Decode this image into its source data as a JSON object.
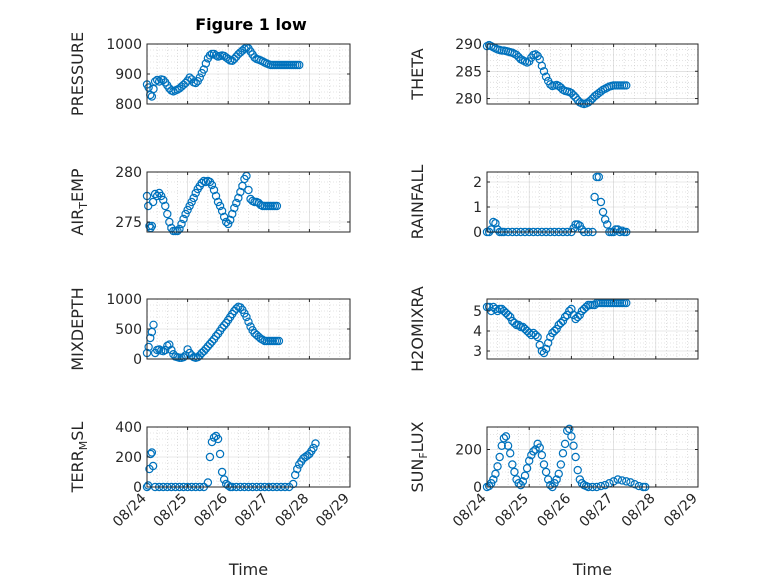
{
  "title": "Figure 1 low",
  "colors": {
    "marker": "#0072BD",
    "axis": "#262626",
    "grid": "#bdbdbd"
  },
  "chart_data": [
    {
      "type": "scatter",
      "ylabel": "PRESSURE",
      "ylim": [
        800,
        1000
      ],
      "yticks": [
        "800",
        "900",
        "1000"
      ],
      "xticks": [],
      "xlabel": "",
      "grid": true,
      "x": [
        0,
        0.04,
        0.08,
        0.12,
        0.16,
        0.2,
        0.25,
        0.3,
        0.35,
        0.4,
        0.45,
        0.5,
        0.55,
        0.6,
        0.65,
        0.7,
        0.75,
        0.8,
        0.85,
        0.9,
        0.95,
        1.0,
        1.05,
        1.1,
        1.15,
        1.2,
        1.25,
        1.3,
        1.35,
        1.4,
        1.45,
        1.5,
        1.55,
        1.6,
        1.65,
        1.7,
        1.75,
        1.8,
        1.85,
        1.9,
        1.95,
        2.0,
        2.05,
        2.1,
        2.15,
        2.2,
        2.25,
        2.3,
        2.35,
        2.4,
        2.45,
        2.5,
        2.55,
        2.6,
        2.65,
        2.7,
        2.75,
        2.8,
        2.85,
        2.9,
        2.95,
        3.0,
        3.05,
        3.1,
        3.15,
        3.2,
        3.25,
        3.3,
        3.35,
        3.4,
        3.45,
        3.5,
        3.55,
        3.6,
        3.65,
        3.7,
        3.75
      ],
      "y": [
        865,
        855,
        830,
        825,
        850,
        875,
        880,
        875,
        882,
        880,
        872,
        862,
        852,
        845,
        842,
        845,
        848,
        852,
        858,
        864,
        870,
        878,
        888,
        882,
        872,
        870,
        876,
        888,
        903,
        915,
        935,
        952,
        962,
        967,
        967,
        962,
        958,
        960,
        962,
        960,
        955,
        950,
        945,
        944,
        950,
        958,
        966,
        972,
        978,
        984,
        988,
        985,
        975,
        965,
        955,
        950,
        948,
        945,
        942,
        938,
        935,
        932,
        930,
        930,
        930,
        930,
        930,
        930,
        930,
        930,
        930,
        930,
        930,
        930,
        930,
        930,
        930
      ]
    },
    {
      "type": "scatter",
      "ylabel": "THETA",
      "ylim": [
        279,
        290
      ],
      "yticks": [
        "280",
        "285",
        "290"
      ],
      "xticks": [],
      "xlabel": "",
      "grid": true,
      "x": [
        0,
        0.05,
        0.1,
        0.15,
        0.2,
        0.25,
        0.3,
        0.35,
        0.4,
        0.45,
        0.5,
        0.55,
        0.6,
        0.65,
        0.7,
        0.75,
        0.8,
        0.85,
        0.9,
        0.95,
        1.0,
        1.05,
        1.1,
        1.15,
        1.2,
        1.25,
        1.3,
        1.35,
        1.4,
        1.45,
        1.5,
        1.55,
        1.6,
        1.65,
        1.7,
        1.75,
        1.8,
        1.85,
        1.9,
        1.95,
        2.0,
        2.05,
        2.1,
        2.15,
        2.2,
        2.25,
        2.3,
        2.35,
        2.4,
        2.45,
        2.5,
        2.55,
        2.6,
        2.65,
        2.7,
        2.75,
        2.8,
        2.85,
        2.9,
        2.95,
        3.0,
        3.05,
        3.1,
        3.15,
        3.2,
        3.25,
        3.3
      ],
      "y": [
        289.6,
        289.8,
        289.6,
        289.4,
        289.2,
        289.0,
        288.9,
        288.8,
        288.8,
        288.7,
        288.6,
        288.5,
        288.4,
        288.2,
        288.0,
        287.6,
        287.2,
        287.0,
        286.8,
        286.6,
        286.8,
        287.5,
        288.0,
        288.1,
        287.8,
        287.2,
        286.0,
        285.0,
        284.0,
        283.2,
        282.6,
        282.3,
        282.4,
        282.5,
        282.3,
        282.0,
        281.6,
        281.4,
        281.3,
        281.2,
        281.0,
        280.6,
        280.2,
        279.7,
        279.3,
        279.1,
        279.0,
        279.1,
        279.3,
        279.6,
        280.0,
        280.4,
        280.7,
        281.0,
        281.3,
        281.6,
        281.8,
        282.0,
        282.2,
        282.3,
        282.4,
        282.4,
        282.4,
        282.4,
        282.4,
        282.4,
        282.4
      ]
    },
    {
      "type": "scatter",
      "ylabel": "AIR_TEMP",
      "ylim": [
        274,
        280
      ],
      "yticks": [
        "275",
        "280"
      ],
      "xticks": [],
      "xlabel": "",
      "grid": true,
      "x": [
        0,
        0.03,
        0.06,
        0.09,
        0.12,
        0.15,
        0.2,
        0.25,
        0.3,
        0.35,
        0.4,
        0.45,
        0.5,
        0.55,
        0.6,
        0.65,
        0.7,
        0.75,
        0.8,
        0.85,
        0.9,
        0.95,
        1.0,
        1.05,
        1.1,
        1.15,
        1.2,
        1.25,
        1.3,
        1.35,
        1.4,
        1.45,
        1.5,
        1.55,
        1.6,
        1.65,
        1.7,
        1.75,
        1.8,
        1.85,
        1.9,
        1.95,
        2.0,
        2.05,
        2.1,
        2.15,
        2.2,
        2.25,
        2.3,
        2.35,
        2.4,
        2.45,
        2.5,
        2.55,
        2.6,
        2.65,
        2.7,
        2.75,
        2.8,
        2.85,
        2.9,
        2.95,
        3.0,
        3.05,
        3.1,
        3.15,
        3.2
      ],
      "y": [
        277.6,
        276.6,
        274.6,
        274.4,
        274.6,
        277.0,
        277.8,
        277.6,
        277.9,
        277.6,
        277.2,
        276.6,
        275.8,
        275.0,
        274.4,
        274.1,
        274.1,
        274.1,
        274.3,
        274.8,
        275.3,
        275.8,
        276.2,
        276.6,
        277.0,
        277.4,
        277.9,
        278.3,
        278.6,
        278.9,
        279.1,
        279.0,
        279.1,
        279.0,
        278.7,
        278.2,
        277.6,
        277.0,
        276.6,
        276.1,
        275.5,
        275.0,
        274.8,
        275.2,
        275.8,
        276.4,
        276.9,
        277.4,
        278.0,
        278.6,
        279.3,
        279.6,
        278.2,
        277.3,
        277.1,
        277.0,
        277.0,
        276.9,
        276.7,
        276.6,
        276.6,
        276.6,
        276.6,
        276.6,
        276.6,
        276.6,
        276.6
      ]
    },
    {
      "type": "scatter",
      "ylabel": "RAINFALL",
      "ylim": [
        0,
        2.4
      ],
      "yticks": [
        "0",
        "1",
        "2"
      ],
      "xticks": [],
      "xlabel": "",
      "grid": true,
      "x": [
        0,
        0.05,
        0.1,
        0.15,
        0.2,
        0.25,
        0.3,
        0.35,
        0.4,
        0.5,
        0.6,
        0.7,
        0.8,
        0.9,
        1.0,
        1.1,
        1.2,
        1.3,
        1.4,
        1.5,
        1.6,
        1.7,
        1.8,
        1.9,
        2.0,
        2.05,
        2.1,
        2.15,
        2.2,
        2.25,
        2.3,
        2.4,
        2.5,
        2.55,
        2.6,
        2.65,
        2.7,
        2.75,
        2.8,
        2.85,
        2.9,
        2.95,
        3.0,
        3.05,
        3.1,
        3.15,
        3.2,
        3.25,
        3.3
      ],
      "y": [
        0,
        0,
        0.1,
        0.4,
        0.35,
        0.1,
        0,
        0,
        0,
        0,
        0,
        0,
        0,
        0,
        0,
        0,
        0,
        0,
        0,
        0,
        0,
        0,
        0,
        0,
        0,
        0.15,
        0.3,
        0.3,
        0.25,
        0.1,
        0,
        0,
        0,
        1.4,
        2.2,
        2.2,
        1.2,
        0.8,
        0.5,
        0.3,
        0,
        0,
        0,
        0.1,
        0.1,
        0,
        0.05,
        0,
        0
      ]
    },
    {
      "type": "scatter",
      "ylabel": "MIXDEPTH",
      "ylim": [
        0,
        1000
      ],
      "yticks": [
        "0",
        "500",
        "1000"
      ],
      "xticks": [],
      "xlabel": "",
      "grid": true,
      "x": [
        0,
        0.04,
        0.08,
        0.12,
        0.16,
        0.2,
        0.25,
        0.3,
        0.35,
        0.4,
        0.45,
        0.5,
        0.55,
        0.6,
        0.65,
        0.7,
        0.75,
        0.8,
        0.85,
        0.9,
        0.95,
        1.0,
        1.05,
        1.1,
        1.15,
        1.2,
        1.25,
        1.3,
        1.35,
        1.4,
        1.45,
        1.5,
        1.55,
        1.6,
        1.65,
        1.7,
        1.75,
        1.8,
        1.85,
        1.9,
        1.95,
        2.0,
        2.05,
        2.1,
        2.15,
        2.2,
        2.25,
        2.3,
        2.35,
        2.4,
        2.45,
        2.5,
        2.55,
        2.6,
        2.65,
        2.7,
        2.75,
        2.8,
        2.85,
        2.9,
        2.95,
        3.0,
        3.05,
        3.1,
        3.15,
        3.2,
        3.25
      ],
      "y": [
        100,
        200,
        350,
        450,
        570,
        100,
        150,
        160,
        140,
        130,
        150,
        220,
        240,
        150,
        80,
        40,
        30,
        20,
        20,
        30,
        60,
        160,
        100,
        60,
        30,
        20,
        30,
        60,
        100,
        130,
        170,
        210,
        250,
        290,
        330,
        380,
        420,
        470,
        520,
        560,
        600,
        650,
        700,
        750,
        800,
        840,
        870,
        860,
        820,
        760,
        700,
        620,
        540,
        480,
        430,
        400,
        370,
        340,
        320,
        300,
        300,
        300,
        300,
        300,
        300,
        300,
        300
      ]
    },
    {
      "type": "scatter",
      "ylabel": "H2OMIXRA",
      "ylim": [
        2.6,
        5.6
      ],
      "yticks": [
        "3",
        "4",
        "5"
      ],
      "xticks": [],
      "xlabel": "",
      "grid": true,
      "x": [
        0,
        0.05,
        0.1,
        0.15,
        0.2,
        0.25,
        0.3,
        0.35,
        0.4,
        0.45,
        0.5,
        0.55,
        0.6,
        0.65,
        0.7,
        0.75,
        0.8,
        0.85,
        0.9,
        0.95,
        1.0,
        1.05,
        1.1,
        1.15,
        1.2,
        1.25,
        1.3,
        1.35,
        1.4,
        1.45,
        1.5,
        1.55,
        1.6,
        1.65,
        1.7,
        1.75,
        1.8,
        1.85,
        1.9,
        1.95,
        2.0,
        2.05,
        2.1,
        2.15,
        2.2,
        2.25,
        2.3,
        2.35,
        2.4,
        2.45,
        2.5,
        2.55,
        2.6,
        2.65,
        2.7,
        2.75,
        2.8,
        2.85,
        2.9,
        2.95,
        3.0,
        3.05,
        3.1,
        3.15,
        3.2,
        3.25,
        3.3
      ],
      "y": [
        5.2,
        5.2,
        5.0,
        5.2,
        5.1,
        5.0,
        5.1,
        5.1,
        5.0,
        4.9,
        4.8,
        4.7,
        4.5,
        4.4,
        4.3,
        4.3,
        4.2,
        4.2,
        4.1,
        4.0,
        3.9,
        3.8,
        3.9,
        3.8,
        3.7,
        3.3,
        3.0,
        2.9,
        3.1,
        3.4,
        3.7,
        3.9,
        4.0,
        4.1,
        4.3,
        4.4,
        4.5,
        4.7,
        4.8,
        5.0,
        5.1,
        4.8,
        4.6,
        4.7,
        4.8,
        5.0,
        5.1,
        5.2,
        5.3,
        5.3,
        5.3,
        5.3,
        5.4,
        5.4,
        5.4,
        5.4,
        5.4,
        5.4,
        5.4,
        5.4,
        5.4,
        5.4,
        5.4,
        5.4,
        5.4,
        5.4,
        5.4
      ]
    },
    {
      "type": "scatter",
      "ylabel": "TERR_MSL",
      "ylim": [
        0,
        400
      ],
      "yticks": [
        "0",
        "200",
        "400"
      ],
      "xticks": [
        "08/24",
        "08/25",
        "08/26",
        "08/27",
        "08/28",
        "08/29"
      ],
      "xlabel": "Time",
      "grid": true,
      "x": [
        0,
        0.03,
        0.06,
        0.09,
        0.12,
        0.15,
        0.2,
        0.3,
        0.4,
        0.5,
        0.6,
        0.7,
        0.8,
        0.9,
        1.0,
        1.1,
        1.2,
        1.3,
        1.4,
        1.5,
        1.55,
        1.6,
        1.65,
        1.7,
        1.75,
        1.8,
        1.85,
        1.9,
        1.95,
        2.0,
        2.05,
        2.1,
        2.2,
        2.3,
        2.4,
        2.5,
        2.6,
        2.7,
        2.8,
        2.9,
        3.0,
        3.1,
        3.2,
        3.3,
        3.4,
        3.5,
        3.6,
        3.65,
        3.7,
        3.75,
        3.8,
        3.85,
        3.9,
        3.95,
        4.0,
        4.05,
        4.1,
        4.15
      ],
      "y": [
        0,
        10,
        120,
        220,
        230,
        140,
        0,
        0,
        0,
        0,
        0,
        0,
        0,
        0,
        0,
        0,
        0,
        0,
        0,
        30,
        200,
        300,
        330,
        340,
        320,
        220,
        100,
        50,
        20,
        10,
        0,
        0,
        0,
        0,
        0,
        0,
        0,
        0,
        0,
        0,
        0,
        0,
        0,
        0,
        0,
        0,
        20,
        80,
        120,
        150,
        170,
        190,
        200,
        210,
        220,
        240,
        260,
        290
      ]
    },
    {
      "type": "scatter",
      "ylabel": "SUN_FLUX",
      "ylim": [
        0,
        320
      ],
      "yticks": [
        "0",
        "200"
      ],
      "xticks": [
        "08/24",
        "08/25",
        "08/26",
        "08/27",
        "08/28",
        "08/29"
      ],
      "xlabel": "Time",
      "grid": true,
      "x": [
        0,
        0.05,
        0.1,
        0.15,
        0.2,
        0.25,
        0.3,
        0.35,
        0.4,
        0.45,
        0.5,
        0.55,
        0.6,
        0.65,
        0.7,
        0.75,
        0.8,
        0.85,
        0.9,
        0.95,
        1.0,
        1.05,
        1.1,
        1.15,
        1.2,
        1.25,
        1.3,
        1.35,
        1.4,
        1.45,
        1.5,
        1.55,
        1.6,
        1.65,
        1.7,
        1.75,
        1.8,
        1.85,
        1.9,
        1.95,
        2.0,
        2.05,
        2.1,
        2.15,
        2.2,
        2.25,
        2.3,
        2.35,
        2.4,
        2.5,
        2.6,
        2.7,
        2.8,
        2.9,
        3.0,
        3.1,
        3.2,
        3.3,
        3.4,
        3.5,
        3.6,
        3.7,
        3.75
      ],
      "y": [
        0,
        5,
        20,
        40,
        70,
        110,
        160,
        220,
        260,
        270,
        220,
        180,
        120,
        80,
        40,
        20,
        10,
        30,
        60,
        100,
        140,
        170,
        190,
        200,
        230,
        210,
        170,
        120,
        80,
        40,
        10,
        0,
        20,
        40,
        70,
        120,
        180,
        230,
        300,
        310,
        270,
        220,
        160,
        90,
        40,
        20,
        10,
        5,
        0,
        0,
        0,
        5,
        10,
        20,
        30,
        40,
        35,
        30,
        25,
        15,
        5,
        0,
        0
      ]
    }
  ]
}
